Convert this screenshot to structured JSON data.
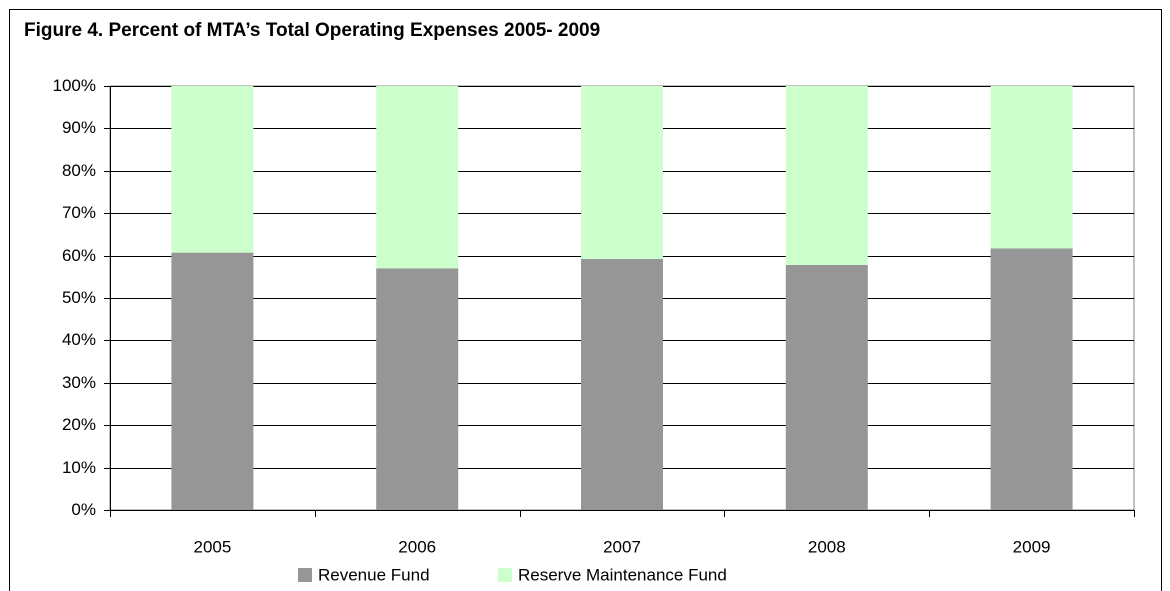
{
  "chart_data": {
    "type": "stacked_bar",
    "title": "Figure 4. Percent of MTA’s Total Operating Expenses 2005- 2009",
    "categories": [
      "2005",
      "2006",
      "2007",
      "2008",
      "2009"
    ],
    "series": [
      {
        "name": "Revenue Fund",
        "color": "#969696",
        "values": [
          60.7,
          57.0,
          59.2,
          57.8,
          61.7
        ]
      },
      {
        "name": "Reserve Maintenance Fund",
        "color": "#ccffcc",
        "values": [
          39.3,
          43.0,
          40.8,
          42.2,
          38.3
        ]
      }
    ],
    "ylim": [
      0,
      100
    ],
    "yticks": [
      {
        "value": 0,
        "label": "0%"
      },
      {
        "value": 10,
        "label": "10%"
      },
      {
        "value": 20,
        "label": "20%"
      },
      {
        "value": 30,
        "label": "30%"
      },
      {
        "value": 40,
        "label": "40%"
      },
      {
        "value": 50,
        "label": "50%"
      },
      {
        "value": 60,
        "label": "60%"
      },
      {
        "value": 70,
        "label": "70%"
      },
      {
        "value": 80,
        "label": "80%"
      },
      {
        "value": 90,
        "label": "90%"
      },
      {
        "value": 100,
        "label": "100%"
      }
    ],
    "grid": true,
    "legend": "bottom"
  }
}
